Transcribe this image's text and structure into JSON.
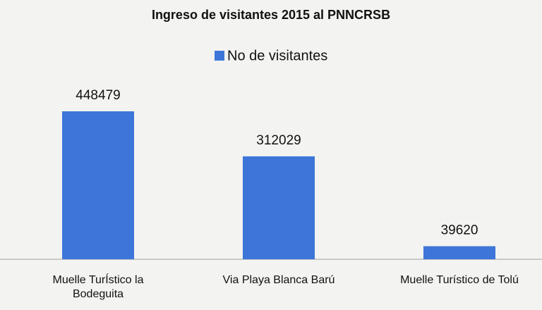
{
  "chart_data": {
    "type": "bar",
    "title": "Ingreso de visitantes  2015 al PNNCRSB",
    "categories": [
      "Muelle TurÍstico la Bodeguita",
      "Via Playa Blanca Barú",
      "Muelle Turístico de Tolú"
    ],
    "series": [
      {
        "name": "No de visitantes",
        "color": "#3d76d8",
        "values": [
          448479,
          312029,
          39620
        ]
      }
    ]
  }
}
